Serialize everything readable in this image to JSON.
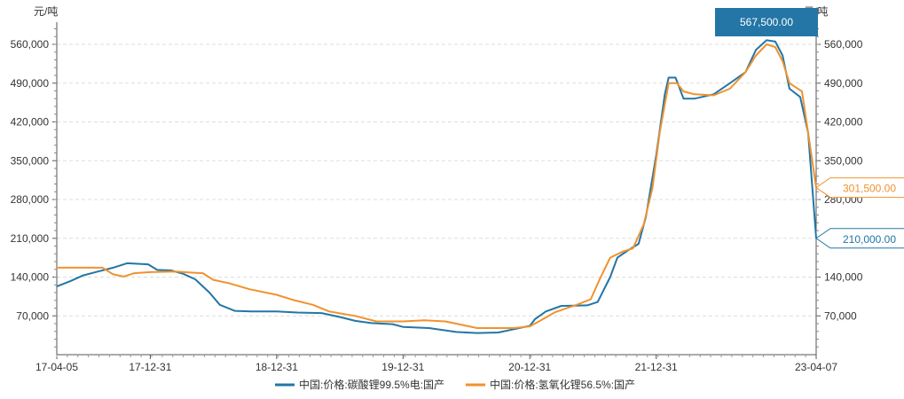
{
  "chart_data": {
    "type": "line",
    "title": "",
    "unit_left": "元/吨",
    "unit_right": "元/吨",
    "ylim": [
      0,
      600000
    ],
    "y_ticks": [
      70000,
      140000,
      210000,
      280000,
      350000,
      420000,
      490000,
      560000
    ],
    "y_tick_labels": [
      "70,000",
      "140,000",
      "210,000",
      "280,000",
      "350,000",
      "420,000",
      "490,000",
      "560,000"
    ],
    "x_range": [
      "2017-04-05",
      "2023-04-07"
    ],
    "x_ticks": [
      "2017-04-05",
      "2017-12-31",
      "2018-12-31",
      "2019-12-31",
      "2020-12-31",
      "2021-12-31",
      "2023-04-07"
    ],
    "x_tick_labels": [
      "17-04-05",
      "17-12-31",
      "18-12-31",
      "19-12-31",
      "20-12-31",
      "21-12-31",
      "23-04-07"
    ],
    "grid": "horizontal-dashed",
    "legend_position": "bottom-center",
    "series": [
      {
        "name": "中国:价格:碳酸锂99.5%电:国产",
        "color": "#2376a6",
        "x": [
          "2017-04-05",
          "2017-05-15",
          "2017-06-20",
          "2017-08-01",
          "2017-09-15",
          "2017-10-25",
          "2017-12-25",
          "2018-01-20",
          "2018-03-01",
          "2018-04-05",
          "2018-05-10",
          "2018-06-20",
          "2018-07-20",
          "2018-09-01",
          "2018-10-20",
          "2018-12-31",
          "2019-03-01",
          "2019-05-10",
          "2019-07-01",
          "2019-08-15",
          "2019-10-01",
          "2019-12-01",
          "2020-01-01",
          "2020-03-15",
          "2020-06-01",
          "2020-08-01",
          "2020-10-01",
          "2020-11-15",
          "2020-12-31",
          "2021-01-15",
          "2021-02-15",
          "2021-04-01",
          "2021-06-15",
          "2021-07-15",
          "2021-08-20",
          "2021-09-10",
          "2021-10-10",
          "2021-11-10",
          "2021-12-01",
          "2021-12-31",
          "2022-01-25",
          "2022-02-05",
          "2022-02-25",
          "2022-03-20",
          "2022-04-20",
          "2022-06-15",
          "2022-08-01",
          "2022-09-15",
          "2022-10-15",
          "2022-11-15",
          "2022-12-10",
          "2022-12-31",
          "2023-01-20",
          "2023-02-20",
          "2023-03-15",
          "2023-04-07"
        ],
        "values": [
          123000,
          133000,
          143000,
          150000,
          157000,
          165000,
          163000,
          153000,
          152000,
          146000,
          136000,
          112000,
          90000,
          79000,
          78000,
          78000,
          76000,
          75000,
          68000,
          61000,
          57000,
          55000,
          50000,
          48000,
          41000,
          39000,
          40000,
          46000,
          52000,
          64000,
          78000,
          88000,
          89000,
          95000,
          140000,
          175000,
          188000,
          200000,
          248000,
          360000,
          470000,
          500000,
          500000,
          462000,
          462000,
          470000,
          490000,
          510000,
          550000,
          567500,
          565000,
          540000,
          480000,
          465000,
          400000,
          210000
        ]
      },
      {
        "name": "中国:价格:氢氧化锂56.5%:国产",
        "color": "#f0922e",
        "x": [
          "2017-04-05",
          "2017-08-15",
          "2017-09-15",
          "2017-10-15",
          "2017-11-15",
          "2017-12-31",
          "2018-03-15",
          "2018-05-01",
          "2018-06-01",
          "2018-07-01",
          "2018-08-15",
          "2018-10-15",
          "2018-12-31",
          "2019-02-15",
          "2019-04-15",
          "2019-06-01",
          "2019-08-15",
          "2019-10-15",
          "2019-12-31",
          "2020-03-01",
          "2020-05-01",
          "2020-06-01",
          "2020-08-01",
          "2020-10-01",
          "2020-11-15",
          "2020-12-31",
          "2021-02-01",
          "2021-03-15",
          "2021-05-15",
          "2021-06-25",
          "2021-07-20",
          "2021-08-20",
          "2021-09-25",
          "2021-10-25",
          "2021-11-25",
          "2021-12-20",
          "2022-01-10",
          "2022-02-05",
          "2022-03-01",
          "2022-03-20",
          "2022-04-20",
          "2022-06-15",
          "2022-08-01",
          "2022-09-15",
          "2022-10-15",
          "2022-11-15",
          "2022-12-10",
          "2022-12-31",
          "2023-01-20",
          "2023-02-25",
          "2023-03-15",
          "2023-04-07"
        ],
        "values": [
          157000,
          157000,
          145000,
          141000,
          147000,
          149000,
          150000,
          148000,
          147000,
          135000,
          129000,
          118000,
          108000,
          99000,
          90000,
          78000,
          70000,
          60000,
          60000,
          62000,
          60000,
          56000,
          48000,
          48000,
          48000,
          51000,
          62000,
          77000,
          90000,
          100000,
          135000,
          175000,
          186000,
          192000,
          235000,
          300000,
          400000,
          490000,
          490000,
          475000,
          470000,
          468000,
          480000,
          510000,
          540000,
          560000,
          555000,
          530000,
          490000,
          475000,
          400000,
          301500
        ]
      }
    ],
    "callouts": {
      "peak_label": "567,500.00",
      "end_label_series2": "301,500.00",
      "end_label_series1": "210,000.00"
    }
  }
}
